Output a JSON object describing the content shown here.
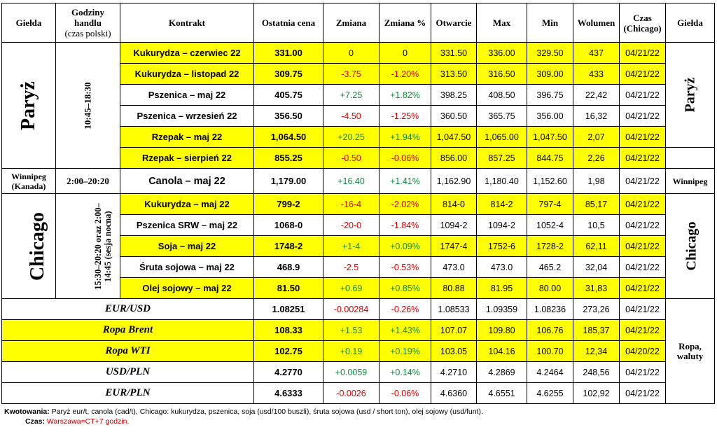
{
  "headers": {
    "gielda": "Giełda",
    "godziny_line1": "Godziny handlu",
    "godziny_line2": "(czas polski)",
    "kontrakt": "Kontrakt",
    "ostatnia": "Ostatnia cena",
    "zmiana": "Zmiana",
    "zmiana_pct": "Zmiana %",
    "otwarcie": "Otwarcie",
    "max": "Max",
    "min": "Min",
    "wolumen": "Wolumen",
    "czas_line1": "Czas",
    "czas_line2": "(Chicago)",
    "gielda_right": "Giełda"
  },
  "groups": {
    "paryz": {
      "name": "Paryż",
      "hours": "10:45–18:30"
    },
    "winnipeg": {
      "name": "Winnipeg (Kanada)",
      "hours": "2:00–20:20",
      "right": "Winnipeg"
    },
    "chicago": {
      "name": "Chicago",
      "hours": "15:30–20:20 oraz 2:00–14:45 (sesja nocna)"
    },
    "ropa": {
      "right": "Ropa, waluty"
    }
  },
  "rows": [
    {
      "contract": "Kukurydza – czerwiec 22",
      "last": "331.00",
      "change": "0",
      "change_pct": "0",
      "open": "331.50",
      "max": "336.00",
      "min": "329.50",
      "volume": "437",
      "time": "04/21/22",
      "highlight": true,
      "sign": "pln"
    },
    {
      "contract": "Kukurydza – listopad 22",
      "last": "309.75",
      "change": "-3.75",
      "change_pct": "-1.20%",
      "open": "313.50",
      "max": "316.50",
      "min": "309.00",
      "volume": "433",
      "time": "04/21/22",
      "highlight": true,
      "sign": "neg"
    },
    {
      "contract": "Pszenica – maj 22",
      "last": "405.75",
      "change": "+7.25",
      "change_pct": "+1.82%",
      "open": "398.25",
      "max": "408.50",
      "min": "396.75",
      "volume": "22,42",
      "time": "04/21/22",
      "highlight": false,
      "sign": "pos"
    },
    {
      "contract": "Pszenica – wrzesień 22",
      "last": "356.50",
      "change": "-4.50",
      "change_pct": "-1.25%",
      "open": "360.50",
      "max": "365.75",
      "min": "356.00",
      "volume": "16,32",
      "time": "04/21/22",
      "highlight": false,
      "sign": "neg"
    },
    {
      "contract": "Rzepak – maj 22",
      "last": "1,064.50",
      "change": "+20.25",
      "change_pct": "+1.94%",
      "open": "1,047.50",
      "max": "1,065.00",
      "min": "1,047.50",
      "volume": "2,07",
      "time": "04/21/22",
      "highlight": true,
      "sign": "pos"
    },
    {
      "contract": "Rzepak – sierpień 22",
      "last": "855.25",
      "change": "-0.50",
      "change_pct": "-0.06%",
      "open": "856.00",
      "max": "857.25",
      "min": "844.75",
      "volume": "2,26",
      "time": "04/21/22",
      "highlight": true,
      "sign": "neg"
    },
    {
      "contract": "Canola – maj 22",
      "last": "1,179.00",
      "change": "+16.40",
      "change_pct": "+1.41%",
      "open": "1,162.90",
      "max": "1,180.40",
      "min": "1,152.60",
      "volume": "1,98",
      "time": "04/21/22",
      "highlight": false,
      "sign": "pos"
    },
    {
      "contract": "Kukurydza – maj 22",
      "last": "799-2",
      "change": "-16-4",
      "change_pct": "-2.02%",
      "open": "814-0",
      "max": "814-2",
      "min": "797-4",
      "volume": "85,17",
      "time": "04/21/22",
      "highlight": true,
      "sign": "neg"
    },
    {
      "contract": "Pszenica SRW – maj 22",
      "last": "1068-0",
      "change": "-20-0",
      "change_pct": "-1.84%",
      "open": "1094-2",
      "max": "1094-2",
      "min": "1052-4",
      "volume": "10,5",
      "time": "04/21/22",
      "highlight": false,
      "sign": "neg"
    },
    {
      "contract": "Soja – maj 22",
      "last": "1748-2",
      "change": "+1-4",
      "change_pct": "+0.09%",
      "open": "1747-4",
      "max": "1752-6",
      "min": "1728-2",
      "volume": "62,11",
      "time": "04/21/22",
      "highlight": true,
      "sign": "pos"
    },
    {
      "contract": "Śruta sojowa – maj 22",
      "last": "468.9",
      "change": "-2.5",
      "change_pct": "-0.53%",
      "open": "473.0",
      "max": "473.0",
      "min": "465.2",
      "volume": "32,04",
      "time": "04/21/22",
      "highlight": false,
      "sign": "neg"
    },
    {
      "contract": "Olej sojowy – maj 22",
      "last": "81.50",
      "change": "+0.69",
      "change_pct": "+0.85%",
      "open": "80.88",
      "max": "81.95",
      "min": "80.00",
      "volume": "31,83",
      "time": "04/21/22",
      "highlight": true,
      "sign": "pos"
    },
    {
      "contract": "EUR/USD",
      "last": "1.08251",
      "change": "-0.00284",
      "change_pct": "-0.26%",
      "open": "1.08533",
      "max": "1.09359",
      "min": "1.08236",
      "volume": "273,26",
      "time": "04/21/22",
      "highlight": false,
      "sign": "neg"
    },
    {
      "contract": "Ropa Brent",
      "last": "108.33",
      "change": "+1.53",
      "change_pct": "+1.43%",
      "open": "107.07",
      "max": "109.80",
      "min": "106.76",
      "volume": "185,37",
      "time": "04/21/22",
      "highlight": true,
      "sign": "pos"
    },
    {
      "contract": "Ropa WTI",
      "last": "102.75",
      "change": "+0.19",
      "change_pct": "+0.19%",
      "open": "103.05",
      "max": "104.16",
      "min": "100.70",
      "volume": "12,34",
      "time": "04/20/22",
      "highlight": true,
      "sign": "pos"
    },
    {
      "contract": "USD/PLN",
      "last": "4.2770",
      "change": "+0.0059",
      "change_pct": "+0.14%",
      "open": "4.2710",
      "max": "4.2869",
      "min": "4.2464",
      "volume": "248,56",
      "time": "04/21/22",
      "highlight": false,
      "sign": "pos"
    },
    {
      "contract": "EUR/PLN",
      "last": "4.6333",
      "change": "-0.0026",
      "change_pct": "-0.06%",
      "open": "4.6360",
      "max": "4.6551",
      "min": "4.6255",
      "volume": "102,92",
      "time": "04/21/22",
      "highlight": false,
      "sign": "neg"
    }
  ],
  "footer": {
    "kw_label": "Kwotowania:",
    "kw_text": " Paryż eur/t, canola (cad/t), Chicago: kukurydza, pszenica, soja (usd/100 buszli), śruta sojowa (usd / short ton), olej sojowy (usd/funt).",
    "czas_label": "Czas:",
    "czas_text": " Warszawa=CT+7 godzin."
  },
  "colors": {
    "highlight": "#ffff00",
    "negative": "#d40000",
    "positive": "#0a8a3c"
  }
}
